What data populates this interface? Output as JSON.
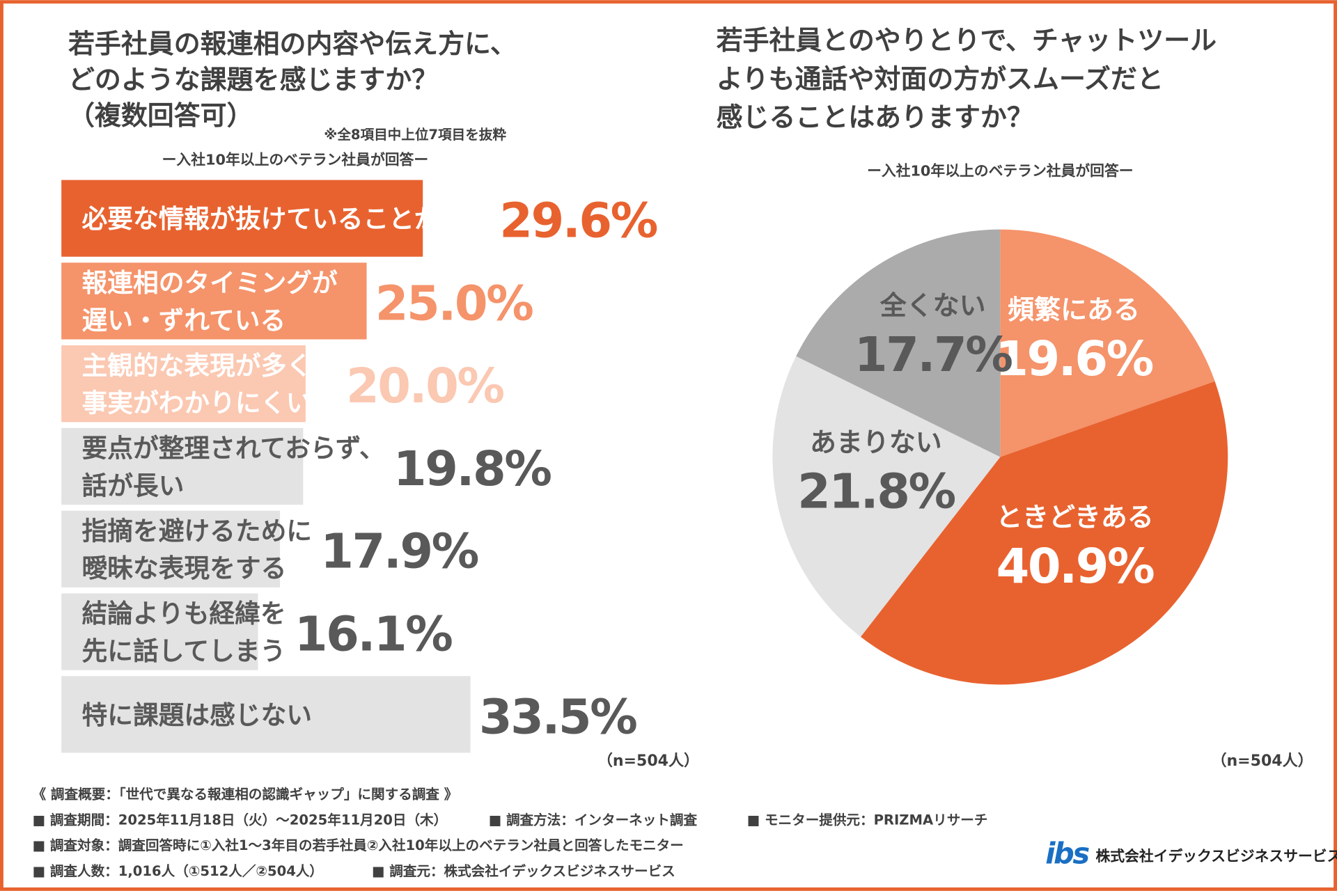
{
  "chart_data": [
    {
      "type": "bar",
      "orientation": "horizontal",
      "title": [
        "若手社員の報連相の内容や伝え方に、",
        "どのような課題を感じますか？",
        "（複数回答可）"
      ],
      "note": "※全8項目中上位7項目を抜粋",
      "subtitle": "ー入社10年以上のベテラン社員が回答ー",
      "categories": [
        [
          "必要な情報が抜けていることがある"
        ],
        [
          "報連相のタイミングが",
          "遅い・ずれている"
        ],
        [
          "主観的な表現が多く、",
          "事実がわかりにくい"
        ],
        [
          "要点が整理されておらず、",
          "話が長い"
        ],
        [
          "指摘を避けるために",
          "曖昧な表現をする"
        ],
        [
          "結論よりも経緯を",
          "先に話してしまう"
        ],
        [
          "特に課題は感じない"
        ]
      ],
      "values": [
        29.6,
        25.0,
        20.0,
        19.8,
        17.9,
        16.1,
        33.5
      ],
      "value_labels": [
        "29.6%",
        "25.0%",
        "20.0%",
        "19.8%",
        "17.9%",
        "16.1%",
        "33.5%"
      ],
      "colors": [
        "#e8622f",
        "#f5936a",
        "#fbc8b2",
        "#e3e3e3",
        "#e3e3e3",
        "#e3e3e3",
        "#e3e3e3"
      ],
      "label_colors": [
        "#e8622f",
        "#f5936a",
        "#fbc8b2",
        "#595959",
        "#595959",
        "#595959",
        "#595959"
      ],
      "sample": "（n=504人）"
    },
    {
      "type": "pie",
      "title": [
        "若手社員とのやりとりで、チャットツール",
        "よりも通話や対面の方がスムーズだと",
        "感じることはありますか？"
      ],
      "subtitle": "ー入社10年以上のベテラン社員が回答ー",
      "categories": [
        "頻繁にある",
        "ときどきある",
        "あまりない",
        "全くない"
      ],
      "values": [
        19.6,
        40.9,
        21.8,
        17.7
      ],
      "value_labels": [
        "19.6%",
        "40.9%",
        "21.8%",
        "17.7%"
      ],
      "colors": [
        "#f5936a",
        "#e8622f",
        "#e3e3e3",
        "#ababab"
      ],
      "label_colors": [
        "#ffffff",
        "#ffffff",
        "#595959",
        "#595959"
      ],
      "sample": "（n=504人）"
    }
  ],
  "footer": {
    "heading": "《 調査概要：「世代で異なる報連相の認識ギャップ」に関する調査 》",
    "rows": [
      [
        "■ 調査期間：2025年11月18日（火）～2025年11月20日（木）",
        "■ 調査方法：インターネット調査",
        "■ モニター提供元：PRIZMAリサーチ"
      ],
      [
        "■ 調査対象：調査回答時に①入社1～3年目の若手社員②入社10年以上のベテラン社員と回答したモニター"
      ],
      [
        "■ 調査人数：1,016人（①512人／②504人）",
        "■ 調査元：株式会社イデックスビジネスサービス"
      ]
    ],
    "logo": "ibs",
    "company": "株式会社イデックスビジネスサービス"
  }
}
